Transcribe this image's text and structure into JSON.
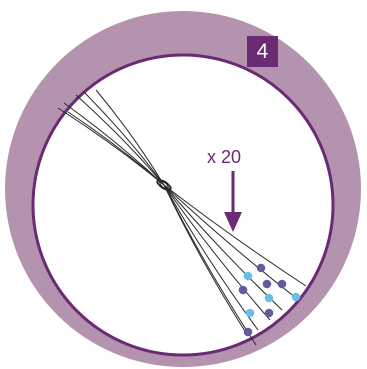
{
  "badge": {
    "text": "4"
  },
  "annotation": {
    "text": "x 20"
  },
  "colors": {
    "outer_ring": "#b393ae",
    "ring_border": "#6a2a74",
    "inner_disc": "#ffffff",
    "lines": "#2a2a2a",
    "arrow": "#6a2a74",
    "dot_dark": "#5f5d9e",
    "dot_light": "#6cbde7",
    "badge_bg": "#6a2a74",
    "badge_text": "#ffffff"
  },
  "icons": {
    "arrow": "arrow-down-icon"
  }
}
